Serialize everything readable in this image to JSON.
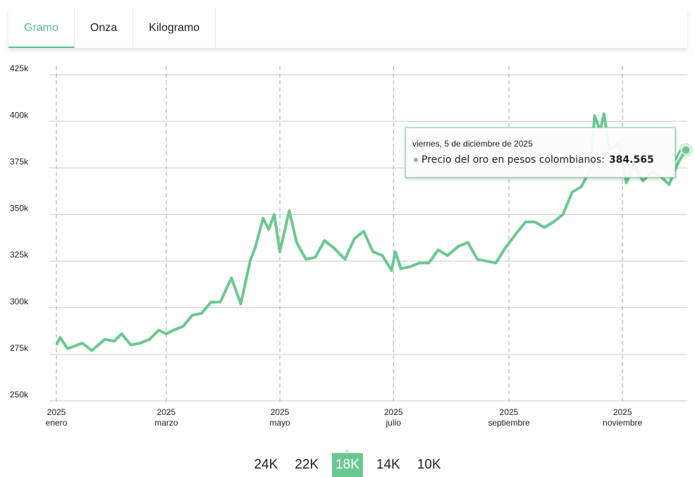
{
  "tabs": {
    "items": [
      "Gramo",
      "Onza",
      "Kilogramo"
    ],
    "active": 0
  },
  "chart_data": {
    "type": "line",
    "x": [
      "2025-01-01",
      "2025-01-03",
      "2025-01-07",
      "2025-01-15",
      "2025-01-20",
      "2025-01-27",
      "2025-02-01",
      "2025-02-05",
      "2025-02-10",
      "2025-02-15",
      "2025-02-20",
      "2025-02-25",
      "2025-03-01",
      "2025-03-05",
      "2025-03-10",
      "2025-03-15",
      "2025-03-20",
      "2025-03-25",
      "2025-03-30",
      "2025-04-05",
      "2025-04-10",
      "2025-04-15",
      "2025-04-18",
      "2025-04-22",
      "2025-04-25",
      "2025-04-28",
      "2025-05-01",
      "2025-05-06",
      "2025-05-10",
      "2025-05-15",
      "2025-05-20",
      "2025-05-25",
      "2025-05-30",
      "2025-06-05",
      "2025-06-10",
      "2025-06-15",
      "2025-06-20",
      "2025-06-25",
      "2025-06-30",
      "2025-07-02",
      "2025-07-05",
      "2025-07-10",
      "2025-07-15",
      "2025-07-20",
      "2025-07-25",
      "2025-07-30",
      "2025-08-05",
      "2025-08-10",
      "2025-08-15",
      "2025-08-20",
      "2025-08-25",
      "2025-08-30",
      "2025-09-05",
      "2025-09-10",
      "2025-09-15",
      "2025-09-20",
      "2025-09-25",
      "2025-09-30",
      "2025-10-05",
      "2025-10-10",
      "2025-10-15",
      "2025-10-17",
      "2025-10-20",
      "2025-10-22",
      "2025-10-25",
      "2025-10-30",
      "2025-11-03",
      "2025-11-07",
      "2025-11-12",
      "2025-11-17",
      "2025-11-22",
      "2025-11-26",
      "2025-12-01",
      "2025-12-05"
    ],
    "series": [
      {
        "name": "Precio del oro en pesos colombianos",
        "color": "#6cc891",
        "values": [
          280000,
          284000,
          278000,
          281000,
          277000,
          283000,
          282000,
          286000,
          280000,
          281000,
          283000,
          288000,
          286000,
          288000,
          290000,
          296000,
          297000,
          303000,
          303000,
          316000,
          302000,
          325000,
          333000,
          348000,
          342000,
          350000,
          330000,
          352000,
          335000,
          326000,
          327000,
          336000,
          332000,
          326000,
          337000,
          341000,
          330000,
          328000,
          320000,
          330000,
          321000,
          322000,
          324000,
          324000,
          331000,
          328000,
          333000,
          335000,
          326000,
          325000,
          324000,
          332000,
          340000,
          346000,
          346000,
          343000,
          346000,
          350000,
          362000,
          365000,
          375000,
          403000,
          395000,
          404000,
          385000,
          388000,
          367000,
          376000,
          368000,
          373000,
          370000,
          366000,
          378000,
          384565
        ]
      }
    ],
    "xlim": [
      "2025-01-01",
      "2025-12-05"
    ],
    "xticks": [
      {
        "value": "2025-01-01",
        "label": "2025",
        "sublabel": "enero"
      },
      {
        "value": "2025-03-01",
        "label": "2025",
        "sublabel": "marzo"
      },
      {
        "value": "2025-05-01",
        "label": "2025",
        "sublabel": "mayo"
      },
      {
        "value": "2025-07-01",
        "label": "2025",
        "sublabel": "julio"
      },
      {
        "value": "2025-09-01",
        "label": "2025",
        "sublabel": "septiembre"
      },
      {
        "value": "2025-11-01",
        "label": "2025",
        "sublabel": "noviembre"
      }
    ],
    "ylim": [
      250000,
      425000
    ],
    "yticks": [
      {
        "value": 250000,
        "label": "250k"
      },
      {
        "value": 275000,
        "label": "275k"
      },
      {
        "value": 300000,
        "label": "300k"
      },
      {
        "value": 325000,
        "label": "325k"
      },
      {
        "value": 350000,
        "label": "350k"
      },
      {
        "value": 375000,
        "label": "375k"
      },
      {
        "value": 400000,
        "label": "400k"
      },
      {
        "value": 425000,
        "label": "425k"
      }
    ],
    "grid": true,
    "tooltip": {
      "title": "viernes, 5 de diciembre de 2025",
      "label": "Precio del oro en pesos colombianos:",
      "value_label": "384.565"
    }
  },
  "karats": {
    "items": [
      "24K",
      "22K",
      "18K",
      "14K",
      "10K"
    ],
    "active": 2
  }
}
